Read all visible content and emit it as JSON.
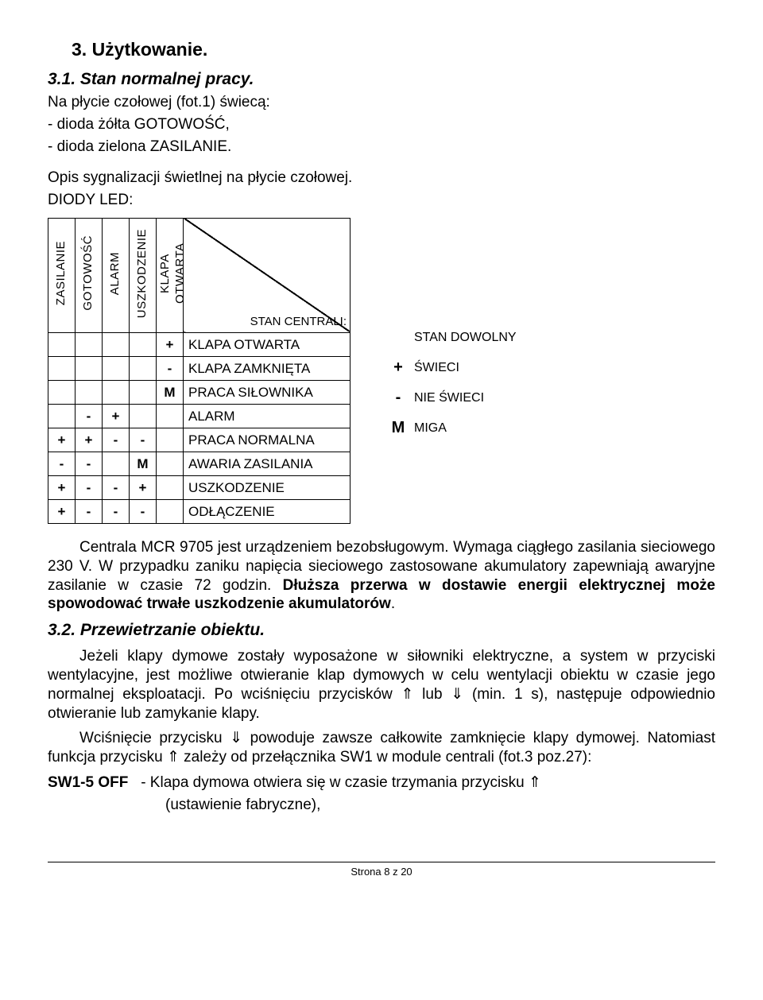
{
  "section_num": "3. Użytkowanie.",
  "sub1_title": "3.1. Stan normalnej pracy.",
  "intro1": "Na płycie czołowej (fot.1) świecą:",
  "intro_li1": "-  dioda żółta GOTOWOŚĆ,",
  "intro_li2": "-  dioda zielona ZASILANIE.",
  "intro2": "Opis sygnalizacji świetlnej na płycie czołowej.",
  "intro3": "DIODY LED:",
  "cols": {
    "c1": "ZASILANIE",
    "c2": "GOTOWOŚĆ",
    "c3": "ALARM",
    "c4": "USZKODZENIE",
    "c5": "KLAPA OTWARTA"
  },
  "diag_label": "STAN CENTRALI:",
  "rows": [
    {
      "c1": "",
      "c2": "",
      "c3": "",
      "c4": "",
      "c5": "+",
      "label": "KLAPA OTWARTA"
    },
    {
      "c1": "",
      "c2": "",
      "c3": "",
      "c4": "",
      "c5": "-",
      "label": "KLAPA ZAMKNIĘTA"
    },
    {
      "c1": "",
      "c2": "",
      "c3": "",
      "c4": "",
      "c5": "M",
      "label": "PRACA SIŁOWNIKA"
    },
    {
      "c1": "",
      "c2": "-",
      "c3": "+",
      "c4": "",
      "c5": "",
      "label": "ALARM"
    },
    {
      "c1": "+",
      "c2": "+",
      "c3": "-",
      "c4": "-",
      "c5": "",
      "label": "PRACA NORMALNA"
    },
    {
      "c1": "-",
      "c2": "-",
      "c3": "",
      "c4": "M",
      "c5": "",
      "label": "AWARIA ZASILANIA"
    },
    {
      "c1": "+",
      "c2": "-",
      "c3": "-",
      "c4": "+",
      "c5": "",
      "label": "USZKODZENIE"
    },
    {
      "c1": "+",
      "c2": "-",
      "c3": "-",
      "c4": "-",
      "c5": "",
      "label": "ODŁĄCZENIE"
    }
  ],
  "legend": {
    "top": "STAN DOWOLNY",
    "plus": "ŚWIECI",
    "minus": "NIE ŚWIECI",
    "m": "MIGA"
  },
  "para1a": "Centrala MCR 9705 jest urządzeniem bezobsługowym. Wymaga ciągłego zasilania sieciowego 230 V. W przypadku zaniku napięcia sieciowego zastosowane akumulatory zapewniają awaryjne zasilanie w czasie 72 godzin. ",
  "para1b": "Dłuższa przerwa w dostawie energii elektrycznej może spowodować trwałe uszkodzenie akumulatorów",
  "para1c": ".",
  "sub2_title": "3.2. Przewietrzanie obiektu.",
  "para2a": "Jeżeli klapy dymowe zostały wyposażone w siłowniki elektryczne, a system w przyciski wentylacyjne, jest możliwe otwieranie klap dymowych w celu wentylacji obiektu w czasie jego normalnej eksploatacji. Po wciśnięciu przycisków ",
  "arrow_up": "⇑",
  "para2b": " lub ",
  "arrow_dn": "⇓",
  "para2c": " (min. 1 s), następuje odpowiednio otwieranie lub zamykanie klapy.",
  "para3a": "Wciśnięcie przycisku ",
  "para3b": " powoduje zawsze całkowite zamknięcie klapy dymowej. Natomiast funkcja przycisku ",
  "para3c": " zależy od przełącznika SW1 w module centrali (fot.3 poz.27):",
  "sw_label": "SW1-5 OFF",
  "sw_text1": "- Klapa dymowa otwiera się w czasie trzymania przycisku ",
  "sw_text2": "(ustawienie fabryczne),",
  "footer": "Strona 8 z 20"
}
